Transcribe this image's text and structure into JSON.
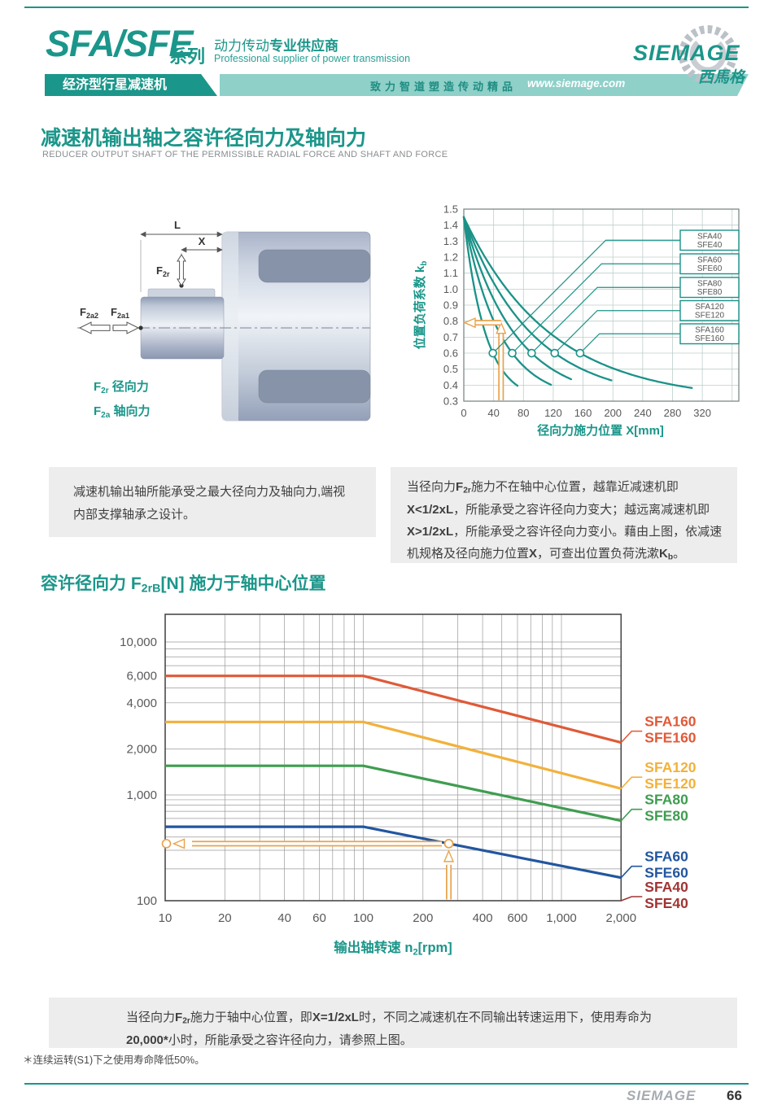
{
  "header": {
    "series": "SFA/SFE",
    "series_suffix": "系列",
    "tagline_zh_regular": "动力传动",
    "tagline_zh_bold": "专业供应商",
    "tagline_en": "Professional supplier of power transmission",
    "banner_left": "经济型行星减速机",
    "banner_slogan": "致力智道塑造传动精品",
    "banner_url": "www.siemage.com",
    "logo_text": "SIEMAGE",
    "logo_cn": "西馬格"
  },
  "section1": {
    "title": "减速机输出轴之容许径向力及轴向力",
    "subtitle": "REDUCER OUTPUT SHAFT OF THE PERMISSIBLE RADIAL FORCE AND SHAFT AND FORCE",
    "left_note": "减速机输出轴所能承受之最大径向力及轴向力,端视内部支撑轴承之设计。",
    "right_note_segments": [
      {
        "t": "当径向力"
      },
      {
        "t": "F",
        "b": true
      },
      {
        "t": "2r",
        "b": true,
        "sub": true
      },
      {
        "t": "施力不在轴中心位置，越靠近减速机即"
      },
      {
        "t": "X<1/2xL",
        "b": true
      },
      {
        "t": "，所能承受之容许径向力变大；越远离减速机即"
      },
      {
        "t": "X>1/2xL",
        "b": true
      },
      {
        "t": "，所能承受之容许径向力变小。藉由上图，依减速机规格及径向施力位置"
      },
      {
        "t": "X",
        "b": true
      },
      {
        "t": "，可查出位置负荷洗漱"
      },
      {
        "t": "K",
        "b": true
      },
      {
        "t": "b",
        "b": true,
        "sub": true
      },
      {
        "t": "。"
      }
    ]
  },
  "section2": {
    "title_segments": [
      {
        "t": "容许径向力 "
      },
      {
        "t": "F",
        "b": true
      },
      {
        "t": "2rB",
        "b": true,
        "sub": true
      },
      {
        "t": "[N]",
        "b": true
      },
      {
        "t": " 施力于轴中心位置"
      }
    ],
    "bottom_note_segments": [
      {
        "t": "当径向力"
      },
      {
        "t": "F",
        "b": true
      },
      {
        "t": "2r",
        "b": true,
        "sub": true
      },
      {
        "t": "施力于轴中心位置，即"
      },
      {
        "t": "X=1/2xL",
        "b": true
      },
      {
        "t": "时，不同之减速机在不同输出转速运用下，使用寿命为"
      },
      {
        "t": "20,000*",
        "b": true
      },
      {
        "t": "小时，所能承受之容许径向力，请参照上图。"
      }
    ]
  },
  "diagram": {
    "dim_l": "L",
    "dim_x": "X",
    "f2r": {
      "pre": "F",
      "sub": "2r"
    },
    "f2a2": {
      "pre": "F",
      "sub": "2a2"
    },
    "f2a1": {
      "pre": "F",
      "sub": "2a1"
    },
    "legend": [
      {
        "pre": "F",
        "sub": "2r",
        "text": " 径向力"
      },
      {
        "pre": "F",
        "sub": "2a",
        "text": " 轴向力"
      }
    ]
  },
  "footnote": "＊连续运转(S1)下之使用寿命降低50%。",
  "footer": {
    "brand": "SIEMAGE",
    "page_number": "66"
  },
  "chart_data": [
    {
      "type": "line",
      "title": "位置负荷系数曲线",
      "xlabel": "径向力施力位置 X[mm]",
      "ylabel": "位置负荷系数 k",
      "ylabel_sub": "b",
      "xlim": [
        0,
        369
      ],
      "ylim": [
        0.3,
        1.5
      ],
      "xticks": [
        0,
        40,
        80,
        120,
        160,
        200,
        240,
        280,
        320
      ],
      "yticks": [
        1.5,
        1.4,
        1.3,
        1.2,
        1.1,
        1.0,
        0.9,
        0.8,
        0.7,
        0.6,
        0.5,
        0.4,
        0.3
      ],
      "line_color": "#1b9288",
      "grid": true,
      "legend_position": "right-boxes",
      "series": [
        {
          "name": "SFA40 / SFE40",
          "k_at_x0": 1.45,
          "x_marker": 39,
          "k_marker": 0.6,
          "x_end": 74,
          "k_end": 0.43
        },
        {
          "name": "SFA60 / SFE60",
          "k_at_x0": 1.45,
          "x_marker": 65,
          "k_marker": 0.6,
          "x_end": 118,
          "k_end": 0.4
        },
        {
          "name": "SFA80 / SFE80",
          "k_at_x0": 1.45,
          "x_marker": 91,
          "k_marker": 0.6,
          "x_end": 146,
          "k_end": 0.42
        },
        {
          "name": "SFA120 / SFE120",
          "k_at_x0": 1.45,
          "x_marker": 122,
          "k_marker": 0.6,
          "x_end": 200,
          "k_end": 0.4
        },
        {
          "name": "SFA160 / SFE160",
          "k_at_x0": 1.45,
          "x_marker": 156,
          "k_marker": 0.6,
          "x_end": 307,
          "k_end": 0.33
        }
      ],
      "legend": [
        [
          "SFA40",
          "SFE40"
        ],
        [
          "SFA60",
          "SFE60"
        ],
        [
          "SFA80",
          "SFE80"
        ],
        [
          "SFA120",
          "SFE120"
        ],
        [
          "SFA160",
          "SFE160"
        ]
      ],
      "guide": {
        "x_mm": 50,
        "kb": 0.79,
        "color": "#e9a24b"
      }
    },
    {
      "type": "line",
      "title": "容许径向力 F2rB[N] 施力于轴中心位置",
      "x_scale": "log",
      "y_scale": "log",
      "xlabel_pre": "输出轴转速 n",
      "xlabel_sub": "2",
      "xlabel_post": "[rpm]",
      "xlim": [
        10,
        2000
      ],
      "ylim": [
        100,
        15000
      ],
      "xticks": [
        "10",
        "20",
        "40",
        "60",
        "100",
        "200",
        "400",
        "600",
        "1,000",
        "2,000"
      ],
      "yticks": [
        "100",
        "1,000",
        "2,000",
        "4,000",
        "6,000",
        "10,000"
      ],
      "knee_rpm": 100,
      "grid": true,
      "series": [
        {
          "label": [
            "SFA160",
            "SFE160"
          ],
          "color": "#df5a38",
          "F_flat": 6000,
          "F_end": 2200
        },
        {
          "label": [
            "SFA120",
            "SFE120"
          ],
          "color": "#f2b13c",
          "F_flat": 3000,
          "F_end": 1100
        },
        {
          "label": [
            "SFA80",
            "SFE80"
          ],
          "color": "#3f9d50",
          "F_flat": 1550,
          "F_end": 570
        },
        {
          "label": [
            "SFA60",
            "SFE60"
          ],
          "color": "#22569f",
          "F_flat": 500,
          "F_end": 165
        },
        {
          "label": [
            "SFA40",
            "SFE40"
          ],
          "color": "#a13434",
          "F_flat": null,
          "F_end": null
        }
      ],
      "guide": {
        "rpm": 270,
        "on_series": "SFA60/SFE60",
        "color": "#e9a24b"
      }
    }
  ]
}
